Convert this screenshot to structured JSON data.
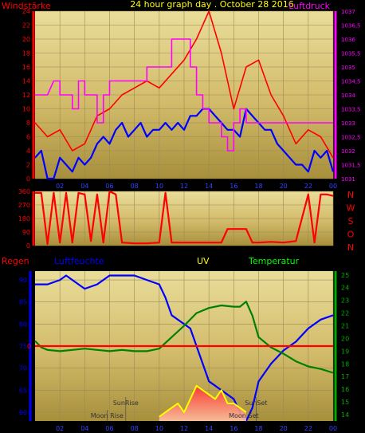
{
  "title": "24 hour graph day . October 28 2016",
  "chart_data": [
    {
      "type": "line",
      "id": "wind",
      "left_label": "Windstärke",
      "right_label": "Luftdruck",
      "left_ticks": [
        "0",
        "2",
        "4",
        "6",
        "8",
        "10",
        "12",
        "14",
        "16",
        "18",
        "20",
        "22",
        "24"
      ],
      "right_ticks": [
        "1031",
        "1031,5",
        "1032",
        "1032,5",
        "1033",
        "1033,5",
        "1034",
        "1034,5",
        "1035",
        "1035,5",
        "1036",
        "1036,5",
        "1037"
      ],
      "ylim_left": [
        0,
        24
      ],
      "ylim_right": [
        1031,
        1037
      ],
      "x_ticks": [
        "02",
        "04",
        "06",
        "08",
        "10",
        "12",
        "14",
        "16",
        "18",
        "20",
        "22",
        "00"
      ],
      "xlim": [
        0,
        24
      ],
      "series": [
        {
          "name": "gust",
          "axis": "left",
          "color": "#ff0000",
          "x": [
            0,
            1,
            2,
            3,
            4,
            5,
            6,
            7,
            8,
            9,
            10,
            11,
            12,
            13,
            14,
            15,
            16,
            17,
            18,
            19,
            20,
            21,
            22,
            23,
            24
          ],
          "y": [
            8,
            6,
            7,
            4,
            5,
            9,
            10,
            12,
            13,
            14,
            13,
            15,
            17,
            20,
            24,
            18,
            10,
            16,
            17,
            12,
            9,
            5,
            7,
            6,
            3
          ]
        },
        {
          "name": "wind",
          "axis": "left",
          "color": "#0000ff",
          "x": [
            0,
            0.5,
            1,
            1.5,
            2,
            2.5,
            3,
            3.5,
            4,
            4.5,
            5,
            5.5,
            6,
            6.5,
            7,
            7.5,
            8,
            8.5,
            9,
            9.5,
            10,
            10.5,
            11,
            11.5,
            12,
            12.5,
            13,
            13.5,
            14,
            14.5,
            15,
            15.5,
            16,
            16.5,
            17,
            17.5,
            18,
            18.5,
            19,
            19.5,
            20,
            20.5,
            21,
            21.5,
            22,
            22.5,
            23,
            23.5,
            24
          ],
          "y": [
            3,
            4,
            0,
            0,
            3,
            2,
            1,
            3,
            2,
            3,
            5,
            6,
            5,
            7,
            8,
            6,
            7,
            8,
            6,
            7,
            7,
            8,
            7,
            8,
            7,
            9,
            9,
            10,
            10,
            9,
            8,
            7,
            7,
            6,
            10,
            9,
            8,
            7,
            7,
            5,
            4,
            3,
            2,
            2,
            1,
            4,
            3,
            4,
            1
          ]
        },
        {
          "name": "pressure",
          "axis": "right",
          "color": "#ff00ff",
          "x": [
            0,
            1,
            1.5,
            2,
            2,
            3,
            3,
            3.5,
            3.5,
            4,
            4,
            5,
            5,
            5.5,
            5.5,
            6,
            6,
            7,
            7,
            8,
            8,
            9,
            9,
            10,
            10,
            11,
            11,
            12.5,
            12.5,
            13,
            13,
            13.5,
            13.5,
            14,
            14,
            15,
            15,
            15.5,
            15.5,
            16,
            16,
            16.5,
            16.5,
            17,
            17,
            17.5,
            17.5,
            18,
            18,
            24
          ],
          "y": [
            1034,
            1034,
            1034.5,
            1034.5,
            1034,
            1034,
            1033.5,
            1033.5,
            1034.5,
            1034.5,
            1034,
            1034,
            1033,
            1033,
            1034,
            1034,
            1034.5,
            1034.5,
            1034.5,
            1034.5,
            1034.5,
            1034.5,
            1035,
            1035,
            1035,
            1035,
            1036,
            1036,
            1035,
            1035,
            1034,
            1034,
            1033.5,
            1033.5,
            1033,
            1033,
            1032.5,
            1032.5,
            1032,
            1032,
            1033,
            1033,
            1033.5,
            1033.5,
            1033,
            1033,
            1033,
            1033,
            1033,
            1033
          ]
        }
      ]
    },
    {
      "type": "line",
      "id": "direction",
      "right_label": [
        "N",
        "W",
        "S",
        "O",
        "N"
      ],
      "left_ticks": [
        "0",
        "90",
        "180",
        "270",
        "360"
      ],
      "ylim": [
        0,
        360
      ],
      "series": [
        {
          "name": "direction",
          "color": "#ff0000",
          "x": [
            0,
            0.5,
            1,
            1.5,
            2,
            2.5,
            3,
            3.5,
            4,
            4.5,
            5,
            5.5,
            6,
            6.5,
            7,
            8,
            9,
            10,
            10.5,
            11,
            12,
            13,
            14,
            15,
            15.5,
            17,
            17.5,
            18,
            19,
            20,
            21,
            22,
            22.5,
            23,
            23.5,
            24
          ],
          "y": [
            350,
            350,
            10,
            350,
            20,
            350,
            20,
            350,
            340,
            30,
            340,
            20,
            360,
            340,
            20,
            15,
            15,
            20,
            350,
            20,
            20,
            20,
            20,
            20,
            110,
            110,
            20,
            20,
            25,
            20,
            30,
            340,
            20,
            340,
            340,
            330
          ]
        }
      ]
    },
    {
      "type": "line",
      "id": "humidity",
      "labels": {
        "rain": "Regen",
        "humidity": "Luftfeuchte",
        "uv": "UV",
        "temperature": "Temperatur"
      },
      "left_ticks": [
        "60",
        "65",
        "70",
        "75",
        "80",
        "85",
        "90"
      ],
      "ylim_left": [
        58,
        92
      ],
      "right_ticks": [
        "14",
        "15",
        "16",
        "17",
        "18",
        "19",
        "20",
        "21",
        "22",
        "23",
        "24",
        "25"
      ],
      "ylim_right": [
        13.5,
        25.3
      ],
      "rain_value": "0",
      "annotations": [
        {
          "text": "SunRise",
          "x": 7.3
        },
        {
          "text": "Moon Rise",
          "x": 5.8
        },
        {
          "text": "SunSet",
          "x": 17.8
        },
        {
          "text": "Moon Set",
          "x": 16.8
        }
      ],
      "series": [
        {
          "name": "humidity",
          "axis": "left",
          "color": "#0000ff",
          "x": [
            0,
            1,
            2,
            2.5,
            3,
            4,
            5,
            6,
            7,
            8,
            9,
            10,
            10.5,
            11,
            12,
            12.5,
            13,
            14,
            15,
            16,
            16.5,
            17,
            17.5,
            18,
            19,
            20,
            21,
            22,
            23,
            24
          ],
          "y": [
            89,
            89,
            90,
            91,
            90,
            88,
            89,
            91,
            91,
            91,
            90,
            89,
            86,
            82,
            80,
            79,
            75,
            67,
            65,
            63,
            60,
            58,
            61,
            67,
            71,
            74,
            76,
            79,
            81,
            82
          ]
        },
        {
          "name": "temperature",
          "axis": "right",
          "color": "#008000",
          "x": [
            0,
            0.5,
            1,
            2,
            3,
            4,
            5,
            6,
            7,
            8,
            9,
            10,
            11,
            12,
            13,
            14,
            15,
            16,
            16.5,
            17,
            17.5,
            18,
            19,
            20,
            21,
            22,
            23,
            24
          ],
          "y": [
            19.8,
            19.3,
            19.1,
            19.0,
            19.1,
            19.2,
            19.1,
            19.0,
            19.1,
            19.0,
            19.0,
            19.2,
            20.1,
            21.0,
            22.0,
            22.4,
            22.6,
            22.5,
            22.5,
            22.9,
            21.8,
            20.1,
            19.3,
            18.8,
            18.2,
            17.8,
            17.6,
            17.3
          ]
        },
        {
          "name": "uv",
          "axis": "left",
          "color": "#ffff00",
          "x": [
            10,
            10.5,
            11,
            11.5,
            12,
            12.5,
            13,
            13.5,
            14,
            14.5,
            15,
            15.5,
            16,
            17
          ],
          "y": [
            59,
            60,
            61,
            62,
            60,
            63,
            66,
            65,
            64,
            63,
            65,
            62,
            62,
            60
          ]
        },
        {
          "name": "rain",
          "axis": "left",
          "color": "#ff0000",
          "x": [
            0,
            24
          ],
          "y": [
            75,
            75
          ]
        }
      ]
    }
  ]
}
